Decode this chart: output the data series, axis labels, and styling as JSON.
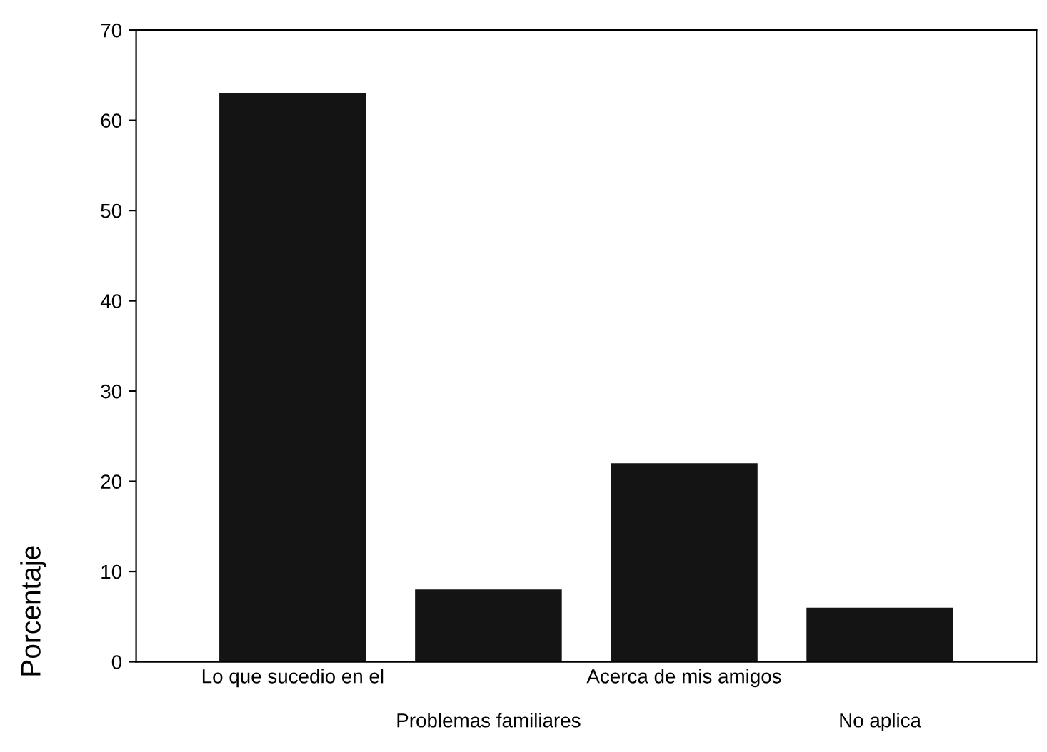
{
  "chart_data": {
    "type": "bar",
    "ylabel": "Porcentaje",
    "categories": [
      "Lo que sucedio en el",
      "Problemas familiares",
      "Acerca de mis amigos",
      "No aplica"
    ],
    "values": [
      63,
      8,
      22,
      6
    ],
    "color": "#141414",
    "ylim": [
      0,
      70
    ],
    "yticks": [
      0,
      10,
      20,
      30,
      40,
      50,
      60,
      70
    ],
    "grid": false
  }
}
